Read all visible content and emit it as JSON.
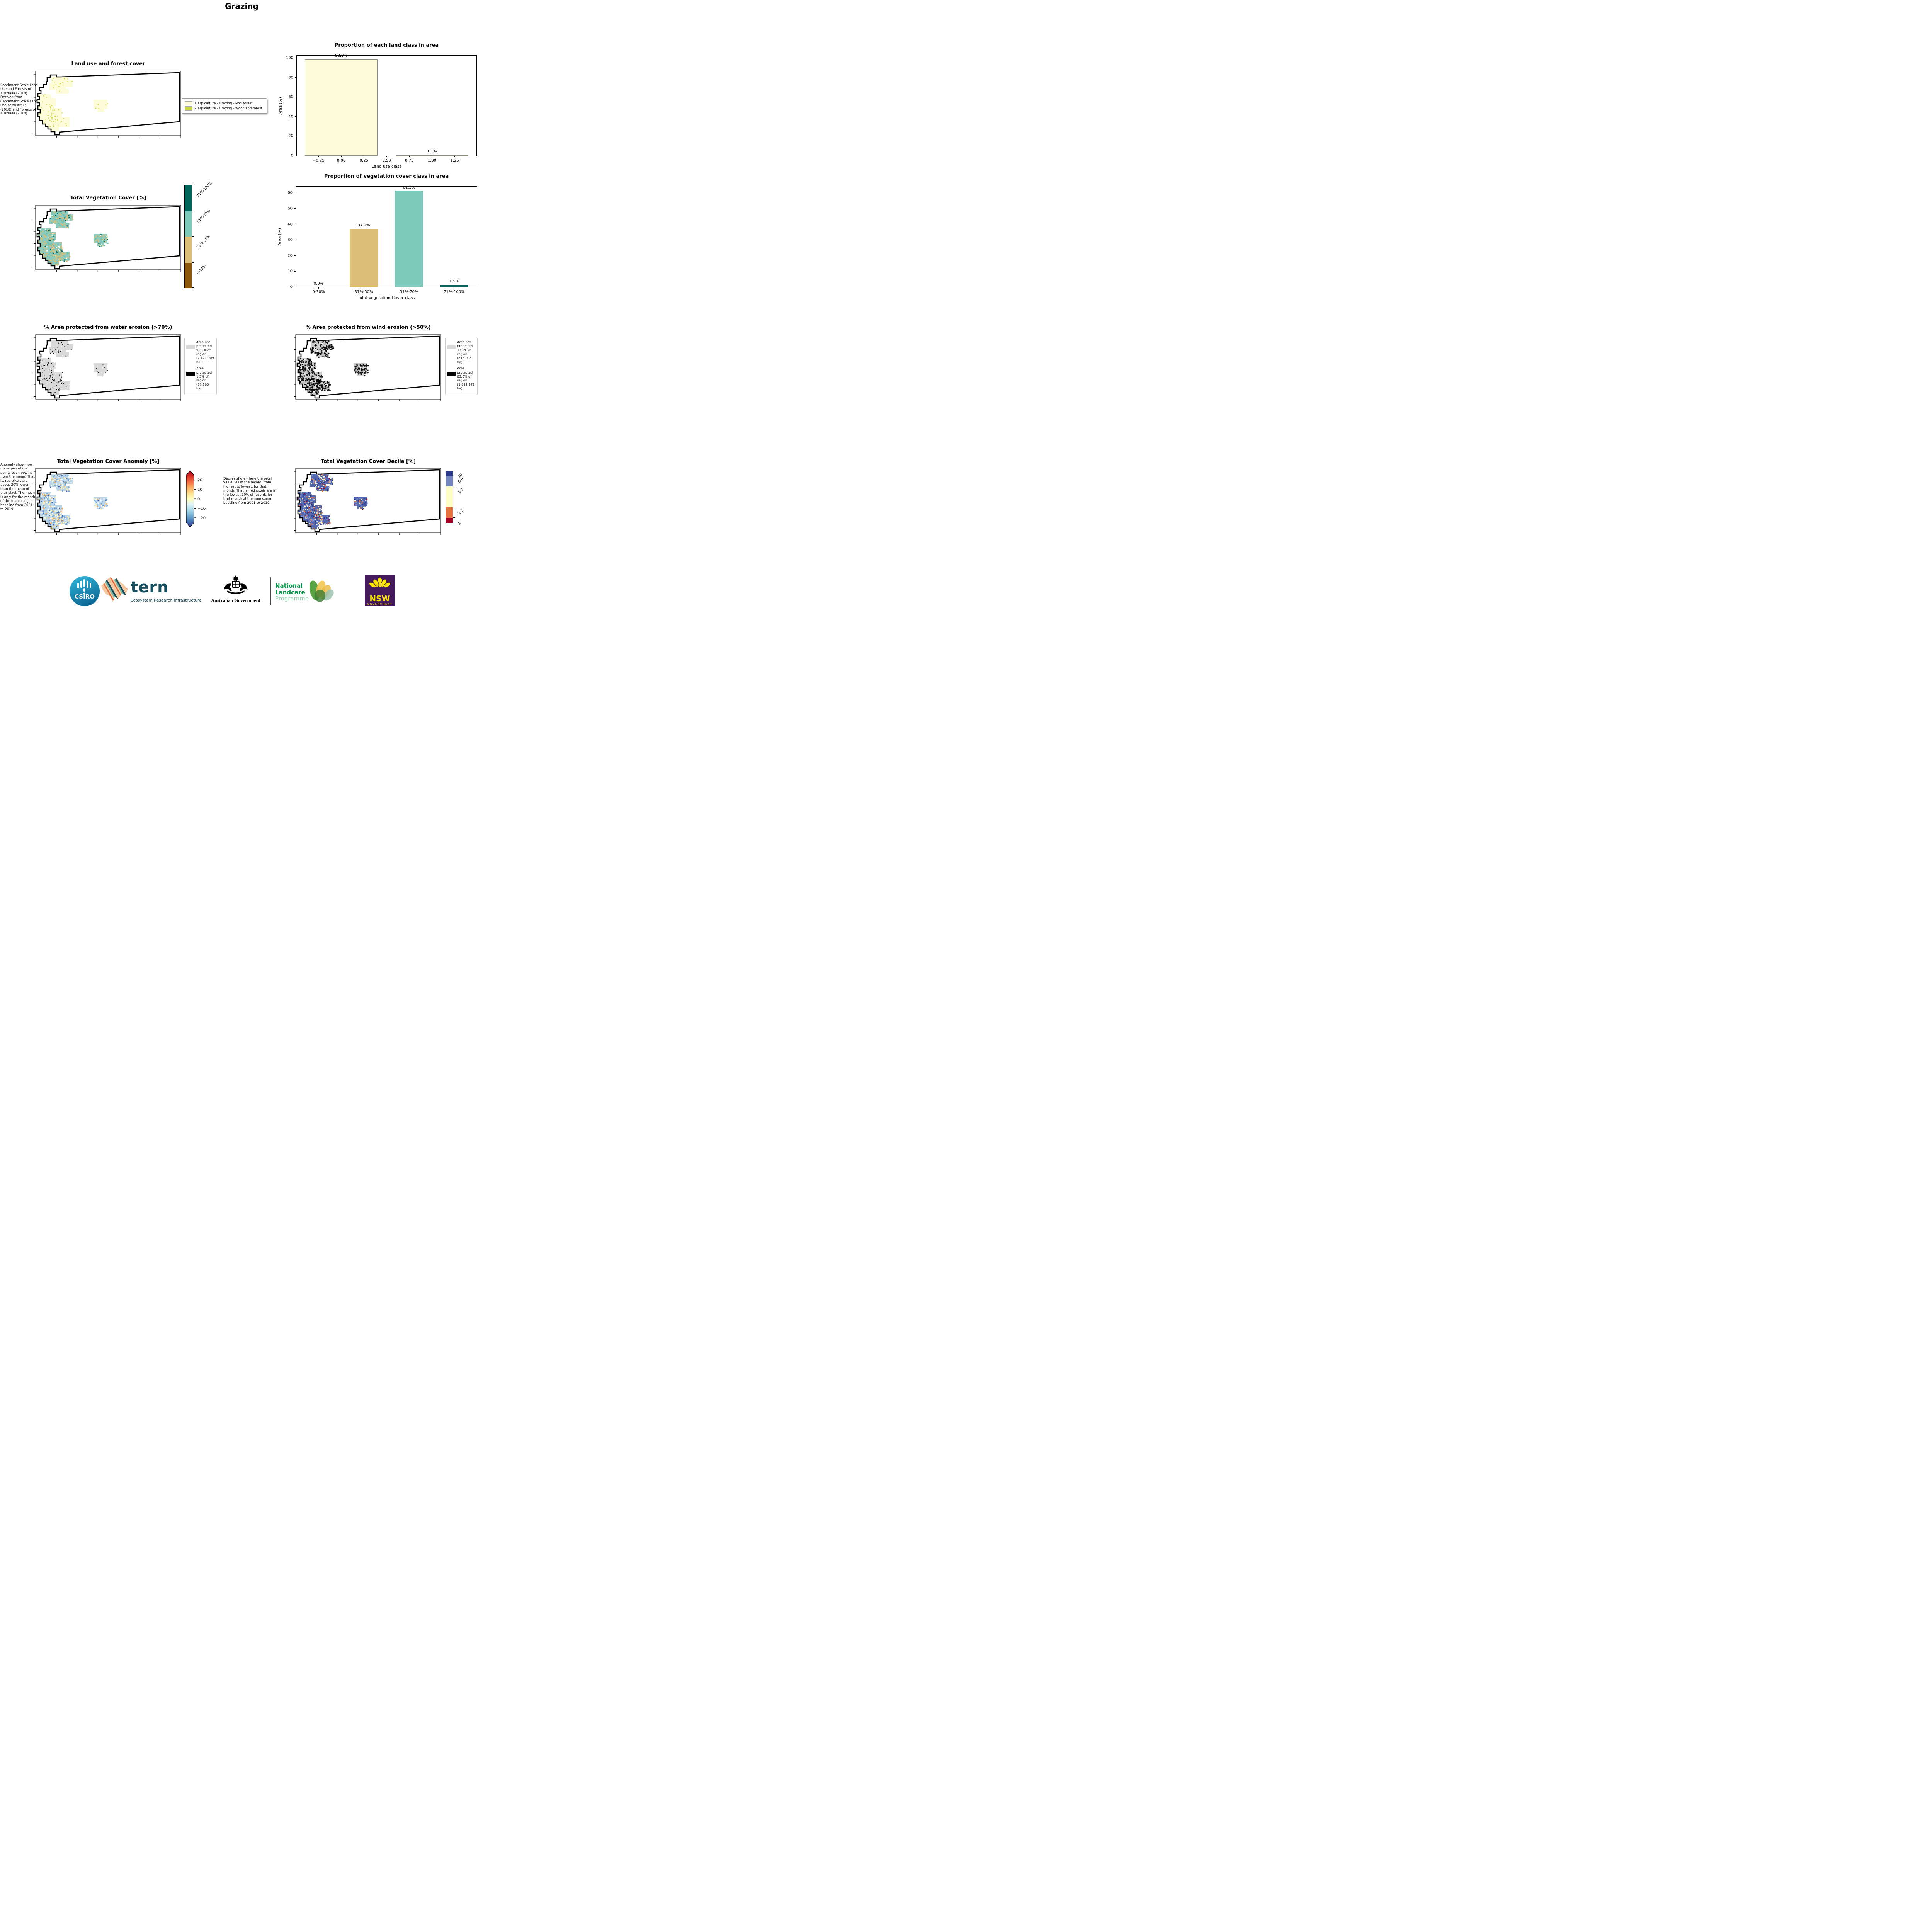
{
  "page_title": "Grazing",
  "panels": {
    "land_use_map": {
      "title": "Land use and forest cover",
      "annotation": " Catchment Scale Land Use and Forests of Australia (2018) Derived from Catchment Scale Land Use of Australia (2018) and Forests of Australia (2018)",
      "legend": [
        {
          "label": "1 Agriculture - Grazing - Non forest",
          "color": "#fcfcd8"
        },
        {
          "label": "2 Agriculture - Grazing - Woodland forest",
          "color": "#c9d742"
        }
      ]
    },
    "veg_cover_map": {
      "title": "Total Vegetation Cover [%]",
      "colorbar": {
        "labels": [
          "71%-100%",
          "51%-70%",
          "31%-50%",
          "0-30%"
        ],
        "colors": [
          "#00665c",
          "#7fc9bc",
          "#ddbe76",
          "#8e5609"
        ]
      }
    },
    "water_erosion_map": {
      "title": "% Area protected from water erosion (>70%)",
      "legend": [
        {
          "color": "#d9d9d9",
          "text": "Area not protected 98.5% of region (2,177,909 ha)"
        },
        {
          "color": "#000000",
          "text": "Area protected 1.5% of region (33,166 ha)"
        }
      ]
    },
    "wind_erosion_map": {
      "title": "% Area protected from wind erosion (>50%)",
      "legend": [
        {
          "color": "#d9d9d9",
          "text": "Area not protected 37.0% of region (818,098 ha)"
        },
        {
          "color": "#000000",
          "text": "Area protected 63.0% of region (1,392,977 ha)"
        }
      ]
    },
    "anomaly_map": {
      "title": "Total Vegetation Cover Anomaly [%]",
      "annotation": "Anomaly show how many percetage points each pixel is from the mean. That is, red pixels are about 20% lower than the mean of that pixel. The mean is only for the month of the map using baseline from 2001 to 2019.",
      "colorbar": {
        "ticks": [
          20,
          10,
          0,
          -10,
          -20
        ],
        "gradient": [
          "#313695",
          "#4575b4",
          "#74add1",
          "#abd9e9",
          "#e0f3f8",
          "#ffffbf",
          "#fee090",
          "#fdae61",
          "#f46d43",
          "#d73027",
          "#a50026"
        ]
      }
    },
    "decile_map": {
      "title": "Total Vegetation Cover Decile [%]",
      "annotation": "Deciles show where the pixel value lies in the record, from highest to lowest, for that month. That is, red pixels are in the lowest 10% of records for that month of the map using baseline from 2001 to 2019.",
      "colorbar": {
        "labels": [
          "10",
          "8-9",
          "4-7",
          "2-3",
          "1"
        ],
        "colors": [
          "#2c3a8c",
          "#7485c0",
          "#fdfdc8",
          "#e8703e",
          "#a50026"
        ],
        "proportions": [
          1,
          2,
          4,
          2,
          1
        ]
      }
    }
  },
  "chart_data": [
    {
      "type": "bar",
      "title": "Proportion of each land class in area",
      "xlabel": "Land use class",
      "ylabel": "Area (%)",
      "x": [
        0,
        1
      ],
      "values": [
        98.9,
        1.1
      ],
      "bar_labels": [
        "98.9%",
        "1.1%"
      ],
      "bar_colors": [
        "#fcfcd8",
        "#c9d742"
      ],
      "bar_edge": "#8a8a8a",
      "bar_width": 0.8,
      "xlim": [
        -0.49,
        1.49
      ],
      "ylim": [
        0,
        102.5
      ],
      "xticks": [
        -0.25,
        0.0,
        0.25,
        0.5,
        0.75,
        1.0,
        1.25
      ],
      "xtick_labels": [
        "−0.25",
        "0.00",
        "0.25",
        "0.50",
        "0.75",
        "1.00",
        "1.25"
      ],
      "yticks": [
        0,
        20,
        40,
        60,
        80,
        100
      ],
      "legend_position": "none",
      "grid": false
    },
    {
      "type": "bar",
      "title": "Proportion of vegetation cover class in area",
      "xlabel": "Total Vegetation Cover class",
      "ylabel": "Area (%)",
      "categories": [
        "0-30%",
        "31%-50%",
        "51%-70%",
        "71%-100%"
      ],
      "values": [
        0.0,
        37.2,
        61.3,
        1.5
      ],
      "bar_labels": [
        "0.0%",
        "37.2%",
        "61.3%",
        "1.5%"
      ],
      "bar_colors": [
        "#8c5109",
        "#ddbe76",
        "#7fc9bc",
        "#00665c"
      ],
      "bar_width": 0.62,
      "ylim": [
        0,
        64
      ],
      "yticks": [
        0,
        10,
        20,
        30,
        40,
        50,
        60
      ],
      "legend_position": "none",
      "grid": false
    }
  ],
  "footer": {
    "csiro_label": "CSIRO",
    "tern_label": "tern",
    "tern_sub": "Ecosystem Research Infrastructure",
    "aus_gov_label": "Australian Government",
    "landcare_line1": "National",
    "landcare_line2": "Landcare",
    "landcare_line3": "Programme",
    "nsw_label": "NSW",
    "nsw_sub": "GOVERNMENT"
  }
}
